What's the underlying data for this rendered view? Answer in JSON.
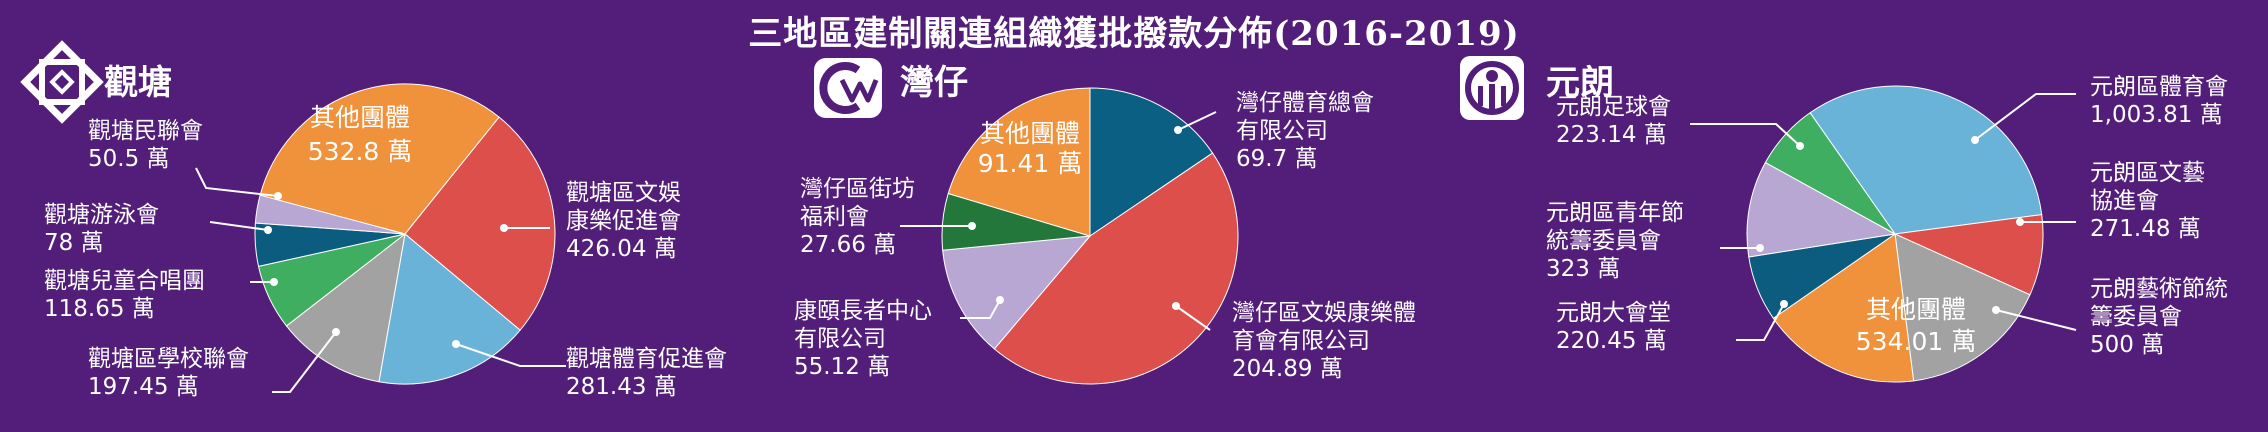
{
  "title": "三地區建制關連組織獲批撥款分佈(2016-2019)",
  "colors": {
    "background": "#531e79",
    "orange": "#f0913b",
    "red": "#dc4f4b",
    "lightblue": "#69b3d8",
    "gray": "#a2a2a2",
    "green": "#3fae60",
    "navy": "#0c5c80",
    "lavender": "#b8a6d3",
    "darkgreen": "#24773a",
    "teal": "#0b5f83"
  },
  "chart_data": [
    {
      "type": "pie",
      "district": "觀塘",
      "logo_icon": "kwun-tong-logo-icon",
      "unit": "萬",
      "slices": [
        {
          "label": "其他團體",
          "value": 532.8,
          "value_text": "532.8 萬",
          "color": "#f0913b"
        },
        {
          "label": "觀塘區文娛康樂促進會",
          "value": 426.04,
          "value_text": "426.04 萬",
          "color": "#dc4f4b"
        },
        {
          "label": "觀塘體育促進會",
          "value": 281.43,
          "value_text": "281.43 萬",
          "color": "#69b3d8"
        },
        {
          "label": "觀塘區學校聯會",
          "value": 197.45,
          "value_text": "197.45 萬",
          "color": "#a2a2a2"
        },
        {
          "label": "觀塘兒童合唱團",
          "value": 118.65,
          "value_text": "118.65 萬",
          "color": "#3fae60"
        },
        {
          "label": "觀塘游泳會",
          "value": 78,
          "value_text": "78 萬",
          "color": "#0c5c80"
        },
        {
          "label": "觀塘民聯會",
          "value": 50.5,
          "value_text": "50.5 萬",
          "color": "#b8a6d3"
        }
      ]
    },
    {
      "type": "pie",
      "district": "灣仔",
      "logo_icon": "wan-chai-logo-icon",
      "unit": "萬",
      "slices": [
        {
          "label": "灣仔體育總會有限公司",
          "value": 69.7,
          "value_text": "69.7 萬",
          "color": "#0b5f83"
        },
        {
          "label": "灣仔區文娛康樂體育會有限公司",
          "value": 204.89,
          "value_text": "204.89 萬",
          "color": "#dc4f4b"
        },
        {
          "label": "康頤長者中心有限公司",
          "value": 55.12,
          "value_text": "55.12 萬",
          "color": "#b8a6d3"
        },
        {
          "label": "灣仔區街坊福利會",
          "value": 27.66,
          "value_text": "27.66 萬",
          "color": "#24773a"
        },
        {
          "label": "其他團體",
          "value": 91.41,
          "value_text": "91.41 萬",
          "color": "#f0913b"
        }
      ]
    },
    {
      "type": "pie",
      "district": "元朗",
      "logo_icon": "yuen-long-logo-icon",
      "unit": "萬",
      "slices": [
        {
          "label": "元朗區體育會",
          "value": 1003.81,
          "value_text": "1,003.81 萬",
          "color": "#69b3d8"
        },
        {
          "label": "元朗區文藝協進會",
          "value": 271.48,
          "value_text": "271.48 萬",
          "color": "#dc4f4b"
        },
        {
          "label": "元朗藝術節統籌委員會",
          "value": 500,
          "value_text": "500 萬",
          "color": "#a2a2a2"
        },
        {
          "label": "其他團體",
          "value": 534.01,
          "value_text": "534.01 萬",
          "color": "#f0913b"
        },
        {
          "label": "元朗大會堂",
          "value": 220.45,
          "value_text": "220.45 萬",
          "color": "#0c5c80"
        },
        {
          "label": "元朗區青年節統籌委員會",
          "value": 323,
          "value_text": "323 萬",
          "color": "#b8a6d3"
        },
        {
          "label": "元朗足球會",
          "value": 223.14,
          "value_text": "223.14 萬",
          "color": "#3fae60"
        }
      ]
    }
  ]
}
